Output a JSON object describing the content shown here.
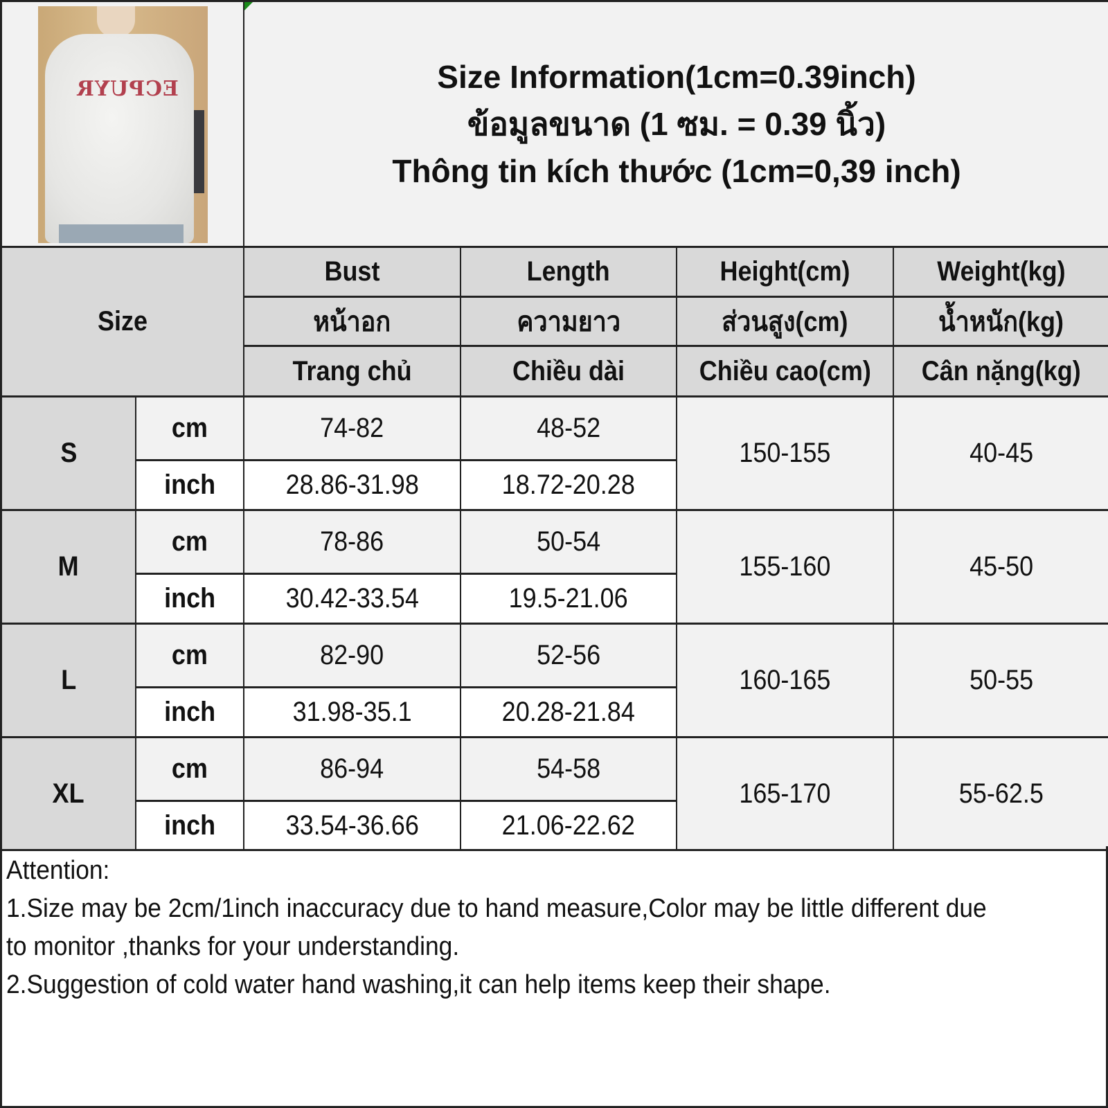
{
  "photo": {
    "shirt_print": "ECPUYR"
  },
  "title": {
    "en": "Size Information(1cm=0.39inch)",
    "th": "ข้อมูลขนาด (1 ซม. = 0.39 นิ้ว)",
    "vi": "Thông tin kích thước (1cm=0,39 inch)"
  },
  "header": {
    "size": "Size",
    "columns": [
      {
        "en": "Bust",
        "th": "หน้าอก",
        "vi": "Trang chủ"
      },
      {
        "en": "Length",
        "th": "ความยาว",
        "vi": "Chiều dài"
      },
      {
        "en": "Height(cm)",
        "th": "ส่วนสูง(cm)",
        "vi": "Chiều cao(cm)"
      },
      {
        "en": "Weight(kg)",
        "th": "น้ำหนัก(kg)",
        "vi": "Cân nặng(kg)"
      }
    ]
  },
  "units": {
    "cm": "cm",
    "inch": "inch"
  },
  "rows": [
    {
      "size": "S",
      "bust_cm": "74-82",
      "length_cm": "48-52",
      "bust_inch": "28.86-31.98",
      "length_inch": "18.72-20.28",
      "height": "150-155",
      "weight": "40-45"
    },
    {
      "size": "M",
      "bust_cm": "78-86",
      "length_cm": "50-54",
      "bust_inch": "30.42-33.54",
      "length_inch": "19.5-21.06",
      "height": "155-160",
      "weight": "45-50"
    },
    {
      "size": "L",
      "bust_cm": "82-90",
      "length_cm": "52-56",
      "bust_inch": "31.98-35.1",
      "length_inch": "20.28-21.84",
      "height": "160-165",
      "weight": "50-55"
    },
    {
      "size": "XL",
      "bust_cm": "86-94",
      "length_cm": "54-58",
      "bust_inch": "33.54-36.66",
      "length_inch": "21.06-22.62",
      "height": "165-170",
      "weight": "55-62.5"
    }
  ],
  "notes": [
    "Attention:",
    "1.Size may be 2cm/1inch inaccuracy due to hand measure,Color may be little different due",
    "to monitor ,thanks for your understanding.",
    "2.Suggestion of cold water hand washing,it can help items keep their shape."
  ]
}
